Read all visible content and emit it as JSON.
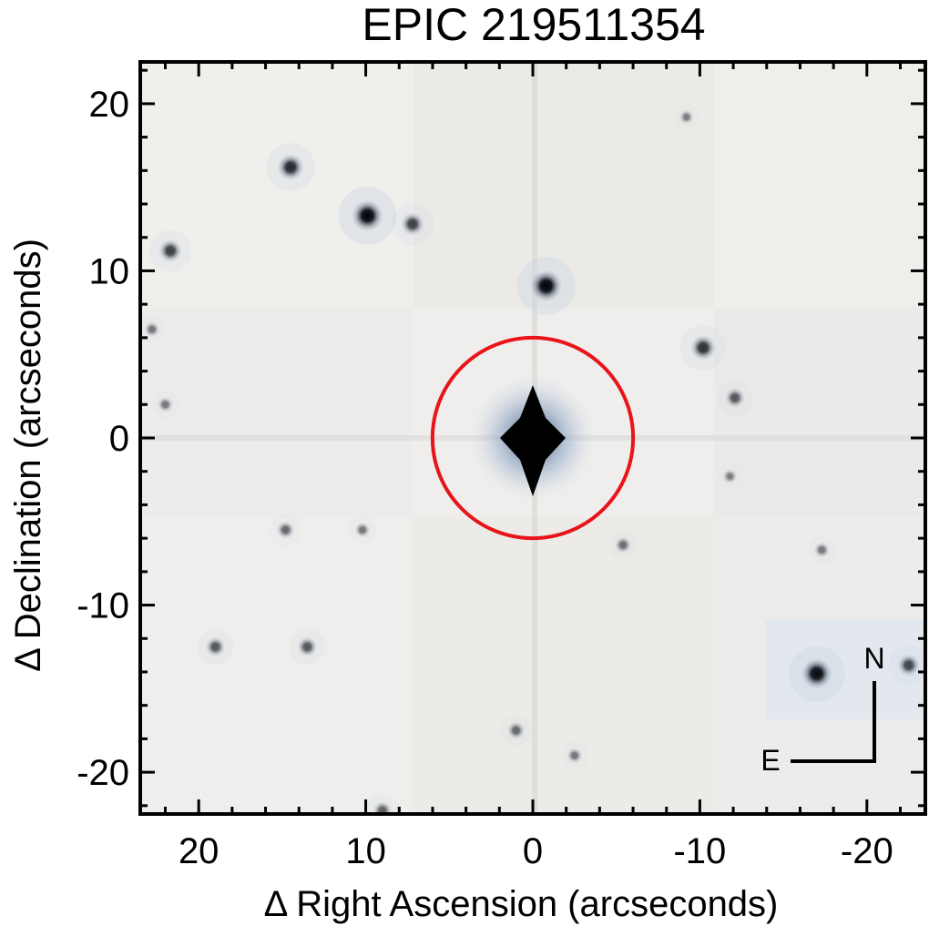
{
  "title": "EPIC 219511354",
  "chart_data": {
    "type": "image",
    "title": "EPIC 219511354",
    "xlabel": "Δ Right Ascension (arcseconds)",
    "ylabel": "Δ Declination (arcseconds)",
    "xlim": [
      23.5,
      -23.5
    ],
    "ylim": [
      -22.5,
      22.5
    ],
    "x_ticks": [
      20,
      10,
      0,
      -10,
      -20
    ],
    "y_ticks": [
      20,
      10,
      0,
      -10,
      -20
    ],
    "target": {
      "x": 0,
      "y": 0,
      "circle_radius": 6
    },
    "stars": [
      {
        "x": 14.5,
        "y": 16.2,
        "mag": 0.75
      },
      {
        "x": 9.9,
        "y": 13.3,
        "mag": 1.0
      },
      {
        "x": 7.2,
        "y": 12.8,
        "mag": 0.6
      },
      {
        "x": 21.7,
        "y": 11.2,
        "mag": 0.6
      },
      {
        "x": -0.8,
        "y": 9.1,
        "mag": 1.0
      },
      {
        "x": -10.2,
        "y": 5.4,
        "mag": 0.7
      },
      {
        "x": -12.1,
        "y": 2.4,
        "mag": 0.45
      },
      {
        "x": 14.8,
        "y": -5.5,
        "mag": 0.35
      },
      {
        "x": 10.2,
        "y": -5.5,
        "mag": 0.25
      },
      {
        "x": -5.4,
        "y": -6.4,
        "mag": 0.3
      },
      {
        "x": -17.3,
        "y": -6.7,
        "mag": 0.25
      },
      {
        "x": 19.0,
        "y": -12.5,
        "mag": 0.45
      },
      {
        "x": 13.5,
        "y": -12.5,
        "mag": 0.45
      },
      {
        "x": -17.0,
        "y": -14.1,
        "mag": 0.95
      },
      {
        "x": -22.5,
        "y": -13.6,
        "mag": 0.55
      },
      {
        "x": 1.0,
        "y": -17.5,
        "mag": 0.35
      },
      {
        "x": -2.5,
        "y": -19.0,
        "mag": 0.25
      },
      {
        "x": 9.0,
        "y": -22.3,
        "mag": 0.4
      },
      {
        "x": 22.0,
        "y": 2.0,
        "mag": 0.25
      },
      {
        "x": -9.2,
        "y": 19.2,
        "mag": 0.2
      },
      {
        "x": 22.8,
        "y": 6.5,
        "mag": 0.25
      },
      {
        "x": -11.8,
        "y": -2.3,
        "mag": 0.2
      }
    ],
    "compass": {
      "north": "N",
      "east": "E"
    }
  }
}
